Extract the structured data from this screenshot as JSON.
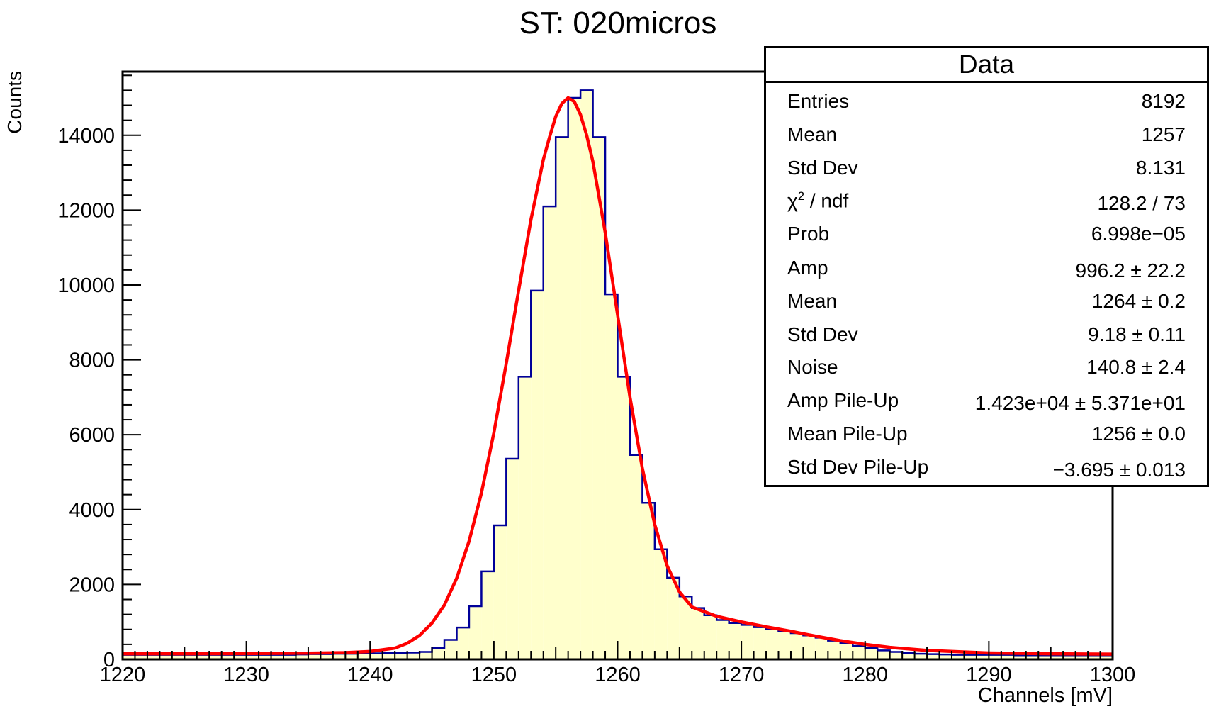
{
  "chart_data": {
    "type": "bar",
    "title": "ST: 020micros",
    "xlabel": "Channels [mV]",
    "ylabel": "Counts",
    "xlim": [
      1220,
      1300
    ],
    "ylim": [
      0,
      15700
    ],
    "x_ticks": [
      "1220",
      "1230",
      "1240",
      "1250",
      "1260",
      "1270",
      "1280",
      "1290",
      "1300"
    ],
    "y_ticks": [
      "0",
      "2000",
      "4000",
      "6000",
      "8000",
      "10000",
      "12000",
      "14000"
    ],
    "bin_width": 1,
    "histogram": {
      "name": "Data",
      "fill_color": "#ffffcc",
      "line_color": "#000099",
      "bin_edges_start": 1220,
      "counts": [
        120,
        120,
        120,
        120,
        120,
        120,
        120,
        120,
        120,
        120,
        120,
        120,
        120,
        120,
        130,
        140,
        140,
        150,
        150,
        160,
        160,
        170,
        170,
        180,
        200,
        300,
        520,
        850,
        1420,
        2350,
        3580,
        5360,
        7550,
        9850,
        12100,
        13950,
        15000,
        15200,
        13950,
        9750,
        7550,
        5460,
        4180,
        2940,
        2180,
        1680,
        1370,
        1180,
        1050,
        970,
        920,
        860,
        800,
        750,
        700,
        640,
        580,
        500,
        430,
        360,
        300,
        240,
        200,
        170,
        150,
        140,
        130,
        120,
        120,
        120,
        120,
        120,
        110,
        110,
        110,
        110,
        110,
        110,
        110,
        110
      ]
    },
    "fit_curve": {
      "color": "#ff0000",
      "x": [
        1220,
        1225,
        1230,
        1235,
        1238,
        1240,
        1242,
        1243,
        1244,
        1245,
        1246,
        1247,
        1248,
        1249,
        1250,
        1251,
        1252,
        1253,
        1254,
        1254.5,
        1255,
        1255.5,
        1256,
        1256.5,
        1257,
        1257.5,
        1258,
        1259,
        1260,
        1261,
        1262,
        1263,
        1264,
        1265,
        1266,
        1268,
        1270,
        1272,
        1274,
        1276,
        1278,
        1280,
        1282,
        1285,
        1290,
        1295,
        1300
      ],
      "y": [
        150,
        150,
        155,
        165,
        180,
        210,
        300,
        430,
        640,
        970,
        1450,
        2170,
        3160,
        4450,
        6050,
        7900,
        9850,
        11750,
        13350,
        13950,
        14500,
        14850,
        15000,
        14900,
        14550,
        14000,
        13300,
        11400,
        9200,
        7000,
        5100,
        3600,
        2500,
        1800,
        1400,
        1150,
        1000,
        870,
        750,
        620,
        500,
        400,
        320,
        240,
        170,
        150,
        140
      ]
    }
  },
  "stats": {
    "title": "Data",
    "rows": [
      {
        "label": "Entries",
        "value": "8192"
      },
      {
        "label": "Mean",
        "value": "1257"
      },
      {
        "label": "Std Dev",
        "value": "8.131"
      },
      {
        "label_pre": "χ",
        "label_sup": "2",
        "label_post": " / ndf",
        "value": "128.2 / 73"
      },
      {
        "label": "Prob",
        "value": "6.998e−05"
      },
      {
        "label": "Amp",
        "value": "996.2 ± 22.2"
      },
      {
        "label": "Mean",
        "value": "1264 ± 0.2"
      },
      {
        "label": "Std Dev",
        "value": "9.18 ± 0.11"
      },
      {
        "label": "Noise",
        "value": "140.8 ± 2.4"
      },
      {
        "label": "Amp Pile-Up",
        "value": "1.423e+04 ± 5.371e+01"
      },
      {
        "label": "Mean Pile-Up",
        "value": "1256 ± 0.0"
      },
      {
        "label": "Std Dev Pile-Up",
        "value": "−3.695 ± 0.013"
      }
    ]
  }
}
